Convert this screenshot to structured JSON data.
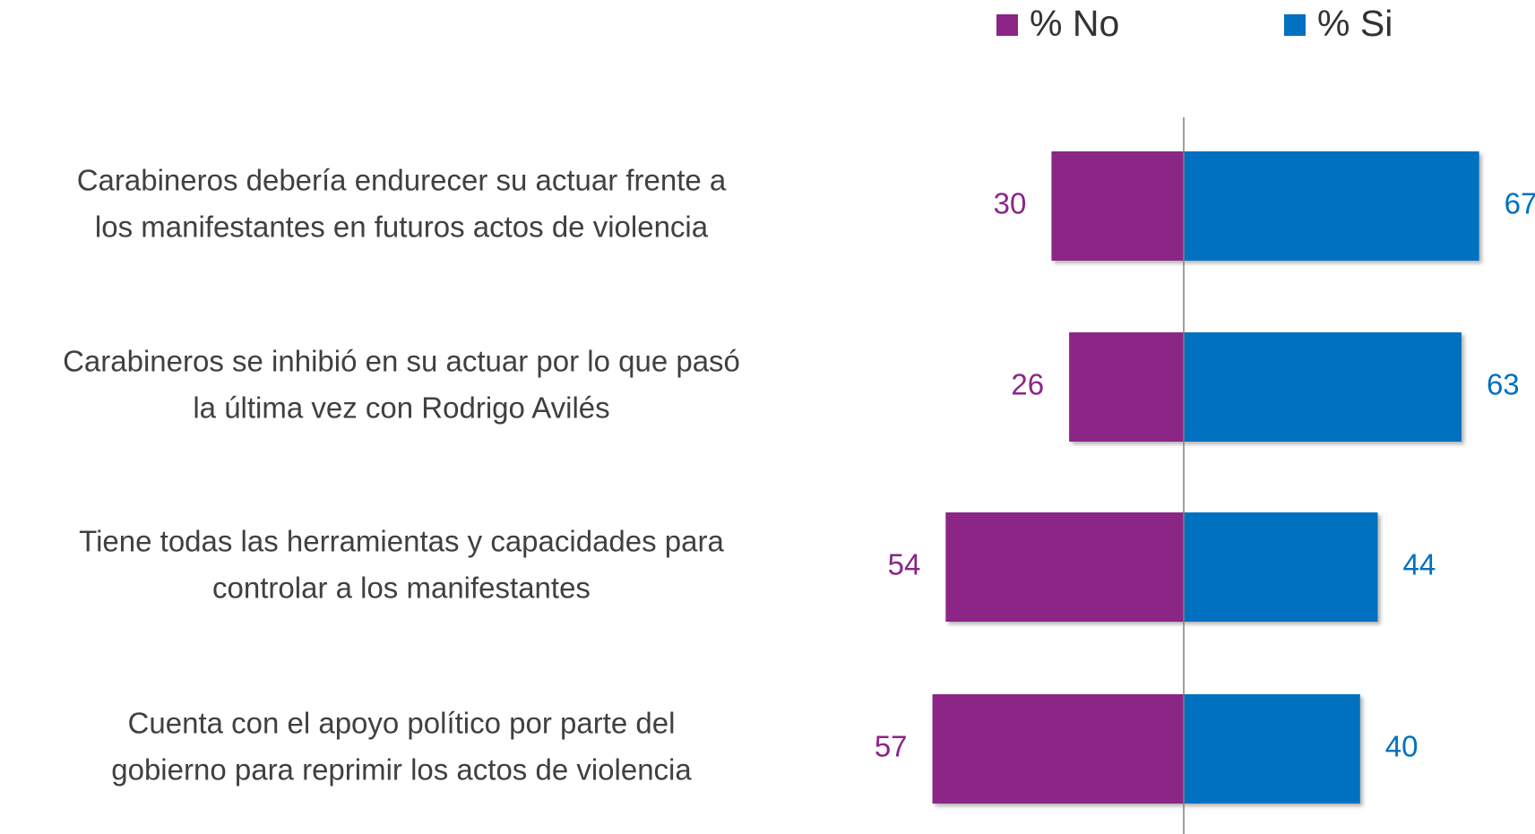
{
  "chart_data": {
    "type": "diverging-bar",
    "categories": [
      [
        "Carabineros debería endurecer su actuar frente a",
        "los manifestantes en futuros actos de violencia"
      ],
      [
        "Carabineros se inhibió en su actuar por lo que pasó",
        "la última vez con Rodrigo Avilés"
      ],
      [
        "Tiene todas las herramientas y capacidades para",
        "controlar a los manifestantes"
      ],
      [
        "Cuenta con el apoyo político por parte del",
        "gobierno para reprimir los actos de violencia"
      ]
    ],
    "series": [
      {
        "name": "% No",
        "color": "#8b2587",
        "values": [
          30,
          26,
          54,
          57
        ]
      },
      {
        "name": "% Si",
        "color": "#0070c0",
        "values": [
          67,
          63,
          44,
          40
        ]
      }
    ],
    "legend": "top-right"
  }
}
